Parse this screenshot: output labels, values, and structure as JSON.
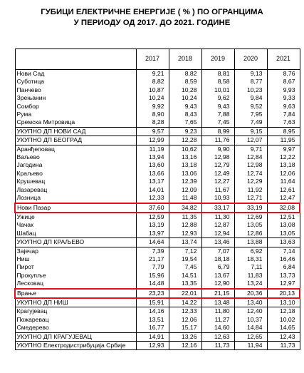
{
  "title": {
    "line1": "ГУБИЦИ ЕЛЕКТРИЧНЕ ЕНЕРГИЈЕ ( % ) ПО ОГРАНЦИМА",
    "line2": "У ПЕРИОДУ ОД 2017. ДО 2021. ГОДИНЕ"
  },
  "years": [
    "2017",
    "2018",
    "2019",
    "2020",
    "2021"
  ],
  "highlight_color": "#e0131c",
  "rows": [
    {
      "name": "Нови Сад",
      "v": [
        "9,21",
        "8,82",
        "8,81",
        "9,13",
        "8,76"
      ]
    },
    {
      "name": "Суботица",
      "v": [
        "8,82",
        "8,59",
        "8,58",
        "8,77",
        "8,67"
      ]
    },
    {
      "name": "Панчево",
      "v": [
        "10,87",
        "10,28",
        "10,01",
        "10,23",
        "9,93"
      ]
    },
    {
      "name": "Зрењанин",
      "v": [
        "10,24",
        "10,24",
        "9,62",
        "9,84",
        "9,33"
      ]
    },
    {
      "name": "Сомбор",
      "v": [
        "9,92",
        "9,43",
        "9,43",
        "9,52",
        "9,63"
      ]
    },
    {
      "name": "Рума",
      "v": [
        "8,90",
        "8,43",
        "7,88",
        "7,95",
        "7,84"
      ]
    },
    {
      "name": "Сремска Митровица",
      "v": [
        "8,28",
        "7,65",
        "7,45",
        "7,49",
        "7,63"
      ]
    },
    {
      "name": "УКУПНО ДП НОВИ САД",
      "v": [
        "9,57",
        "9,23",
        "8,99",
        "9,15",
        "8,95"
      ],
      "type": "total"
    },
    {
      "name": "УКУПНО ДП БЕОГРАД",
      "v": [
        "12,99",
        "12,28",
        "11,76",
        "12,07",
        "11,95"
      ],
      "type": "total"
    },
    {
      "name": "Аранђеловац",
      "v": [
        "11,19",
        "10,62",
        "9,90",
        "9,71",
        "9,97"
      ]
    },
    {
      "name": "Ваљево",
      "v": [
        "13,94",
        "13,16",
        "12,98",
        "12,84",
        "12,22"
      ]
    },
    {
      "name": "Јагодина",
      "v": [
        "13,60",
        "13,18",
        "12,79",
        "12,98",
        "13,18"
      ]
    },
    {
      "name": "Краљево",
      "v": [
        "13,66",
        "13,06",
        "12,49",
        "12,74",
        "12,06"
      ]
    },
    {
      "name": "Крушевац",
      "v": [
        "13,17",
        "12,39",
        "12,27",
        "12,29",
        "11,64"
      ]
    },
    {
      "name": "Лазаревац",
      "v": [
        "14,01",
        "12,09",
        "11,67",
        "11,92",
        "12,61"
      ]
    },
    {
      "name": "Лозница",
      "v": [
        "12,33",
        "11,48",
        "10,93",
        "12,71",
        "12,47"
      ]
    },
    {
      "name": "Нови Пазар",
      "v": [
        "37,60",
        "34,82",
        "33,17",
        "33,19",
        "32,08"
      ],
      "type": "highlight"
    },
    {
      "name": "Ужице",
      "v": [
        "12,59",
        "11,35",
        "11,30",
        "12,69",
        "12,51"
      ]
    },
    {
      "name": "Чачак",
      "v": [
        "13,19",
        "12,88",
        "12,87",
        "13,05",
        "13,08"
      ]
    },
    {
      "name": "Шабац",
      "v": [
        "13,97",
        "12,93",
        "12,94",
        "12,86",
        "13,05"
      ]
    },
    {
      "name": "УКУПНО ДП КРАЉЕВО",
      "v": [
        "14,64",
        "13,74",
        "13,46",
        "13,88",
        "13,63"
      ],
      "type": "total"
    },
    {
      "name": "Зајечар",
      "v": [
        "7,39",
        "7,12",
        "7,07",
        "6,92",
        "7,14"
      ]
    },
    {
      "name": "Ниш",
      "v": [
        "21,17",
        "19,54",
        "18,18",
        "18,31",
        "16,46"
      ]
    },
    {
      "name": "Пирот",
      "v": [
        "7,79",
        "7,45",
        "6,79",
        "7,11",
        "6,84"
      ]
    },
    {
      "name": "Прокупље",
      "v": [
        "15,96",
        "14,51",
        "13,67",
        "11,83",
        "13,73"
      ]
    },
    {
      "name": "Лесковац",
      "v": [
        "14,48",
        "13,35",
        "12,90",
        "13,24",
        "12,97"
      ]
    },
    {
      "name": "Врање",
      "v": [
        "23,23",
        "22,01",
        "21,15",
        "20,36",
        "20,13"
      ],
      "type": "highlight"
    },
    {
      "name": "УКУПНО ДП НИШ",
      "v": [
        "15,91",
        "14,22",
        "13,48",
        "13,40",
        "13,10"
      ],
      "type": "total"
    },
    {
      "name": "Крагујевац",
      "v": [
        "14,16",
        "12,33",
        "11,80",
        "12,40",
        "12,18"
      ]
    },
    {
      "name": "Пожаревац",
      "v": [
        "13,51",
        "12,06",
        "11,27",
        "10,37",
        "10,02"
      ]
    },
    {
      "name": "Смедерево",
      "v": [
        "16,77",
        "15,17",
        "14,60",
        "14,84",
        "14,65"
      ]
    },
    {
      "name": "УКУПНО ДП КРАГУЈЕВАЦ",
      "v": [
        "14,91",
        "13,26",
        "12,63",
        "12,65",
        "12,43"
      ],
      "type": "total"
    },
    {
      "name": "УКУПНО Електродистрибуција Србије",
      "v": [
        "12,93",
        "12,16",
        "11,73",
        "11,94",
        "11,73"
      ],
      "type": "total"
    }
  ]
}
